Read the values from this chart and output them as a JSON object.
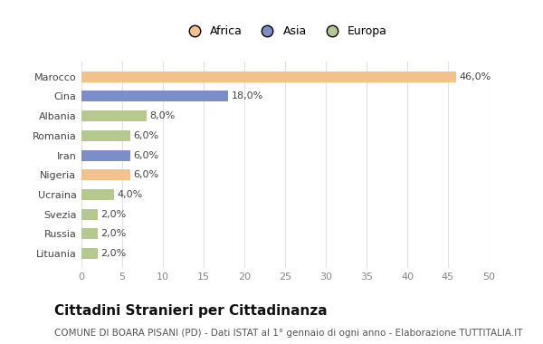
{
  "categories": [
    "Marocco",
    "Cina",
    "Albania",
    "Romania",
    "Iran",
    "Nigeria",
    "Ucraina",
    "Svezia",
    "Russia",
    "Lituania"
  ],
  "values": [
    46.0,
    18.0,
    8.0,
    6.0,
    6.0,
    6.0,
    4.0,
    2.0,
    2.0,
    2.0
  ],
  "colors": [
    "#f5c18a",
    "#7b8ec8",
    "#b5c98e",
    "#b5c98e",
    "#7b8ec8",
    "#f5c18a",
    "#b5c98e",
    "#b5c98e",
    "#b5c98e",
    "#b5c98e"
  ],
  "legend": [
    {
      "label": "Africa",
      "color": "#f5c18a"
    },
    {
      "label": "Asia",
      "color": "#7b8ec8"
    },
    {
      "label": "Europa",
      "color": "#b5c98e"
    }
  ],
  "title": "Cittadini Stranieri per Cittadinanza",
  "subtitle": "COMUNE DI BOARA PISANI (PD) - Dati ISTAT al 1° gennaio di ogni anno - Elaborazione TUTTITALIA.IT",
  "xlim": [
    0,
    50
  ],
  "xticks": [
    0,
    5,
    10,
    15,
    20,
    25,
    30,
    35,
    40,
    45,
    50
  ],
  "background_color": "#ffffff",
  "plot_bg_color": "#ffffff",
  "grid_color": "#e0e0e0",
  "title_fontsize": 11,
  "subtitle_fontsize": 7.5,
  "label_fontsize": 8,
  "tick_fontsize": 8,
  "bar_height": 0.55
}
